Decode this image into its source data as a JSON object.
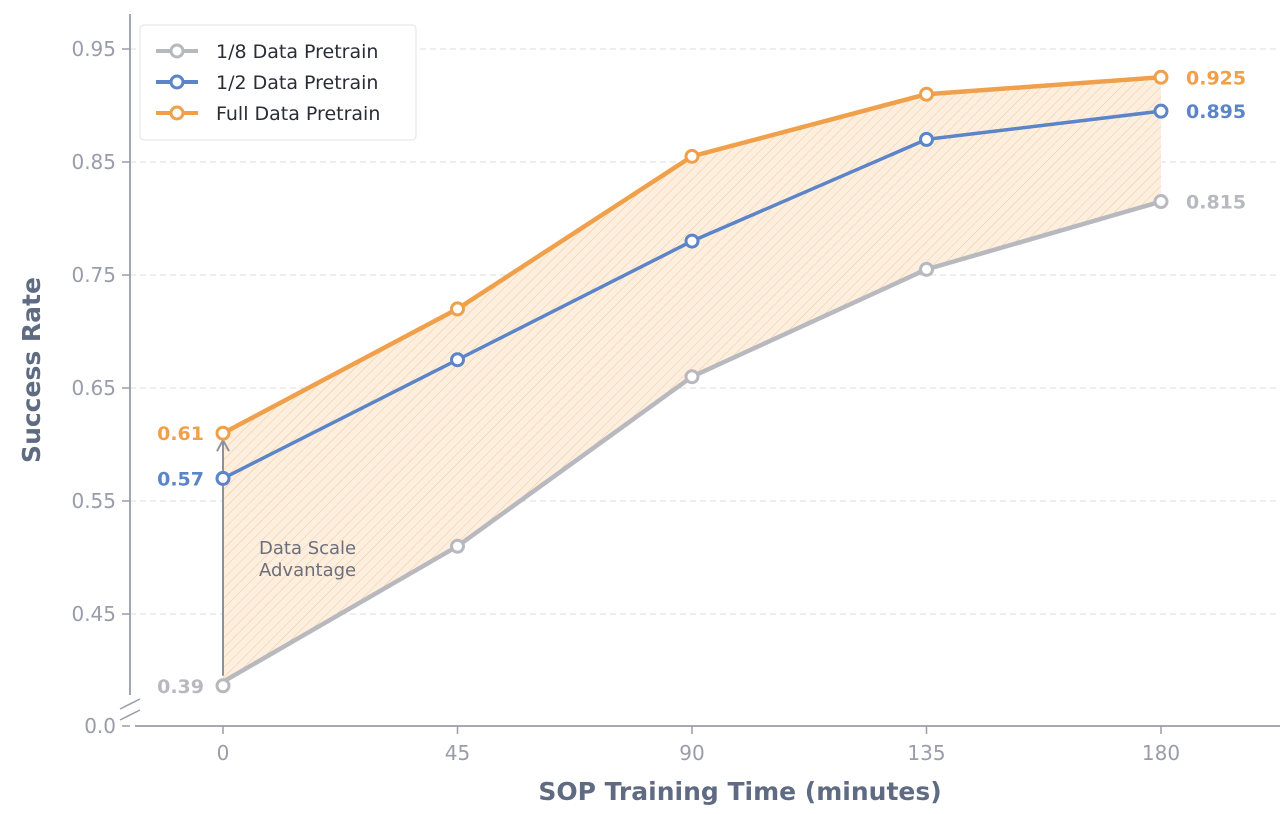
{
  "chart_data": {
    "type": "line",
    "title": "",
    "xlabel": "SOP Training Time (minutes)",
    "ylabel": "Success Rate",
    "x": [
      0,
      45,
      90,
      135,
      180
    ],
    "x_tick_labels": [
      "0",
      "45",
      "90",
      "135",
      "180"
    ],
    "y_tick_labels": [
      "0.0",
      "0.45",
      "0.55",
      "0.65",
      "0.75",
      "0.85",
      "0.95"
    ],
    "ylim": [
      0.37,
      0.97
    ],
    "y_axis_break": true,
    "grid": "horizontal dashed",
    "legend_placement": "top-left",
    "series": [
      {
        "name": "1/8 Data Pretrain",
        "color": "#b8b9bf",
        "values": [
          0.39,
          0.51,
          0.66,
          0.755,
          0.815
        ],
        "start_label": "0.39",
        "end_label": "0.815"
      },
      {
        "name": "1/2 Data Pretrain",
        "color": "#5b84c9",
        "values": [
          0.57,
          0.675,
          0.78,
          0.87,
          0.895
        ],
        "start_label": "0.57",
        "end_label": "0.895"
      },
      {
        "name": "Full Data Pretrain",
        "color": "#f0a04b",
        "values": [
          0.61,
          0.72,
          0.855,
          0.91,
          0.925
        ],
        "start_label": "0.61",
        "end_label": "0.925"
      }
    ],
    "shaded_region": "between Full Data Pretrain and 1/8 Data Pretrain (hatched orange)",
    "annotation": {
      "text_line1": "Data Scale",
      "text_line2": "Advantage",
      "arrow": "from 0.39 to 0.61 at x=0"
    }
  }
}
